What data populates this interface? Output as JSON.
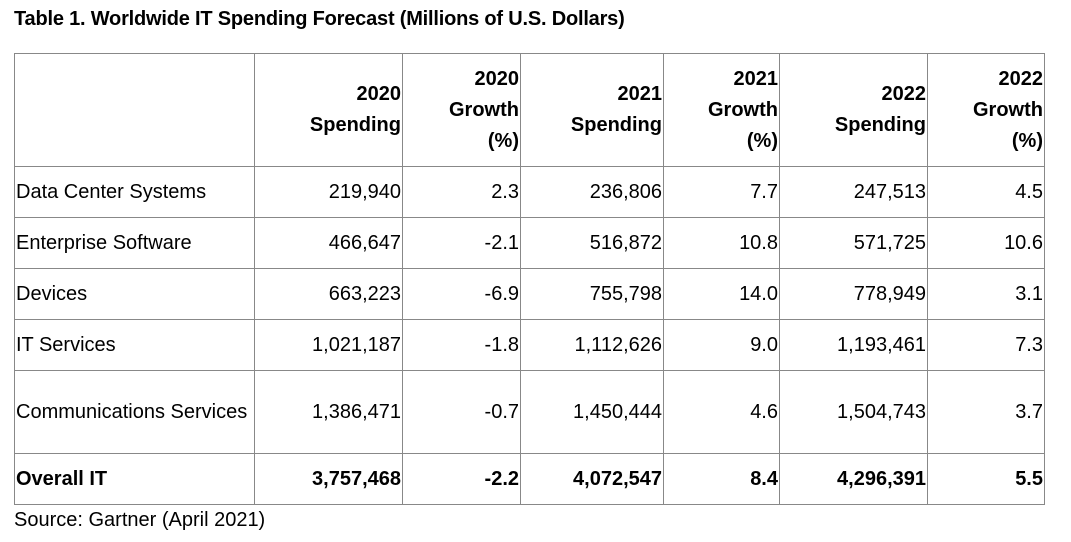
{
  "title": "Table 1. Worldwide IT Spending Forecast (Millions of U.S. Dollars)",
  "headers": [
    {
      "line1": "",
      "line2": "",
      "line3": ""
    },
    {
      "line1": "2020",
      "line2": "Spending"
    },
    {
      "line1": "2020",
      "line2": "Growth",
      "line3": "(%)"
    },
    {
      "line1": "2021",
      "line2": "Spending"
    },
    {
      "line1": "2021",
      "line2": "Growth",
      "line3": "(%)"
    },
    {
      "line1": "2022",
      "line2": "Spending"
    },
    {
      "line1": "2022",
      "line2": "Growth",
      "line3": "(%)"
    }
  ],
  "rows": [
    {
      "label": "Data Center Systems",
      "cells": [
        "219,940",
        "2.3",
        "236,806",
        "7.7",
        "247,513",
        "4.5"
      ]
    },
    {
      "label": "Enterprise Software",
      "cells": [
        "466,647",
        "-2.1",
        "516,872",
        "10.8",
        "571,725",
        "10.6"
      ]
    },
    {
      "label": "Devices",
      "cells": [
        "663,223",
        "-6.9",
        "755,798",
        "14.0",
        "778,949",
        "3.1"
      ]
    },
    {
      "label": "IT Services",
      "cells": [
        "1,021,187",
        "-1.8",
        "1,112,626",
        "9.0",
        "1,193,461",
        "7.3"
      ]
    },
    {
      "label": "Communications Services",
      "cells": [
        "1,386,471",
        "-0.7",
        "1,450,444",
        "4.6",
        "1,504,743",
        "3.7"
      ]
    },
    {
      "label": "Overall IT",
      "cells": [
        "3,757,468",
        "-2.2",
        "4,072,547",
        "8.4",
        "4,296,391",
        "5.5"
      ]
    }
  ],
  "source": "Source: Gartner (April 2021)"
}
